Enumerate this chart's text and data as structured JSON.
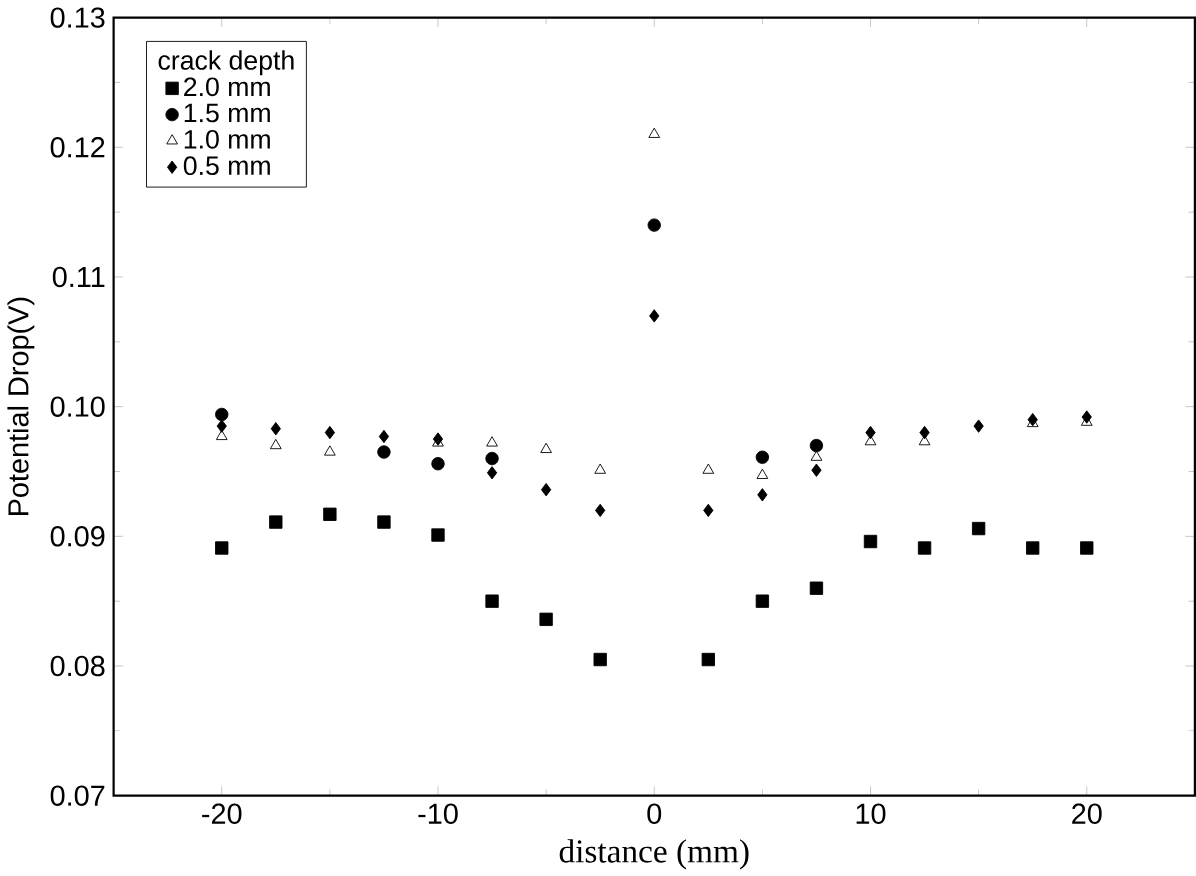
{
  "chart_data": {
    "type": "scatter",
    "xlabel": "distance (mm)",
    "ylabel": "Potential Drop(V)",
    "legend_title": "crack depth",
    "legend": "top left",
    "x": [
      -20,
      -17.5,
      -15,
      -12.5,
      -10,
      -7.5,
      -5,
      -2.5,
      0,
      2.5,
      5,
      7.5,
      10,
      12.5,
      15,
      17.5,
      20
    ],
    "xlim": [
      -25,
      25
    ],
    "xticks": [
      -20,
      -10,
      0,
      10,
      20
    ],
    "ylim": [
      0.07,
      0.13
    ],
    "yticks": [
      {
        "value": 0.07,
        "label": "0.07"
      },
      {
        "value": 0.08,
        "label": "0.08"
      },
      {
        "value": 0.09,
        "label": "0.09"
      },
      {
        "value": 0.1,
        "label": "0.10"
      },
      {
        "value": 0.11,
        "label": "0.11"
      },
      {
        "value": 0.12,
        "label": "0.12"
      },
      {
        "value": 0.13,
        "label": "0.13"
      }
    ],
    "series": [
      {
        "name": "2.0 mm",
        "color": "#000000",
        "marker": "square",
        "values": [
          0.0891,
          0.0911,
          0.0917,
          0.0911,
          0.0901,
          0.085,
          0.0836,
          0.0805,
          null,
          0.0805,
          0.085,
          0.086,
          0.0896,
          0.0891,
          0.0906,
          0.0891,
          0.0891
        ]
      },
      {
        "name": "1.5 mm",
        "color": "#000000",
        "marker": "circle",
        "values": [
          0.0994,
          null,
          null,
          0.0965,
          0.0956,
          0.096,
          null,
          null,
          0.114,
          null,
          0.0961,
          0.097,
          null,
          null,
          null,
          null,
          null
        ]
      },
      {
        "name": "1.0 mm",
        "color": "#000000",
        "marker": "triangle",
        "values": [
          0.0977,
          0.097,
          0.0965,
          null,
          0.0972,
          0.0972,
          0.0967,
          0.0951,
          0.121,
          0.0951,
          0.0947,
          0.0961,
          0.0973,
          0.0973,
          null,
          0.0987,
          0.0988
        ]
      },
      {
        "name": "0.5 mm",
        "color": "#000000",
        "marker": "diamond",
        "values": [
          0.0985,
          0.0983,
          0.098,
          0.0977,
          0.0975,
          0.0949,
          0.0936,
          0.092,
          0.107,
          0.092,
          0.0932,
          0.0951,
          0.098,
          0.098,
          0.0985,
          0.099,
          0.0992
        ]
      }
    ]
  }
}
